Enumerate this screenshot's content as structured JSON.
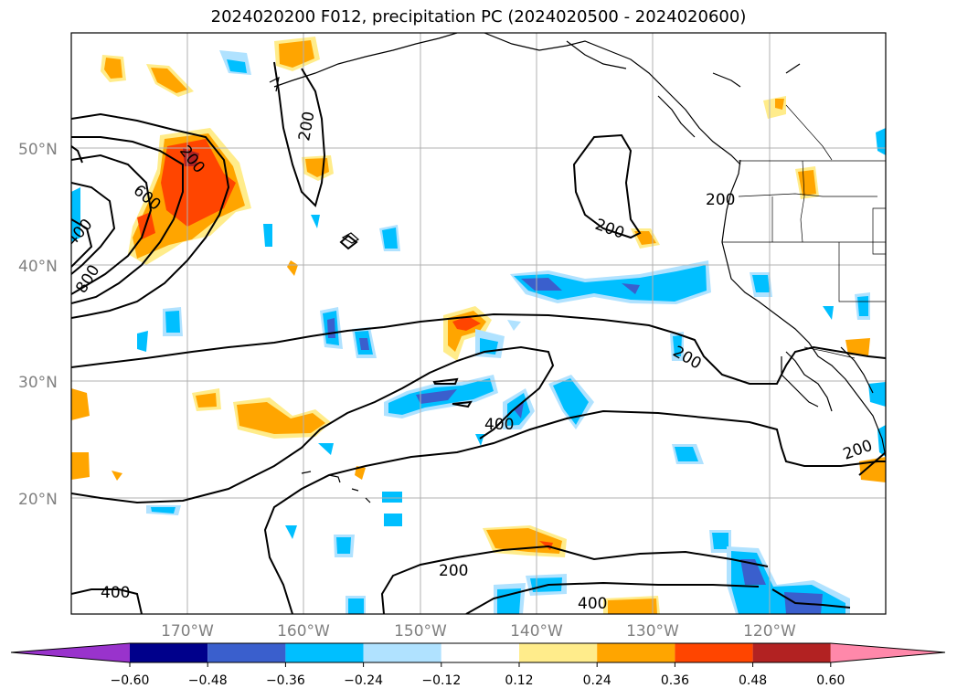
{
  "title": "2024020200 F012, precipitation PC (2024020500 - 2024020600)",
  "latitude_labels": [
    "50°N",
    "40°N",
    "30°N",
    "20°N"
  ],
  "longitude_labels": [
    "170°W",
    "160°W",
    "150°W",
    "140°W",
    "130°W",
    "120°W"
  ],
  "contour_labels": {
    "c1": "200",
    "c2": "200",
    "c3": "600",
    "c4": "400",
    "c5": "800",
    "c6": "200",
    "c7": "200",
    "c8": "200",
    "c9": "400",
    "c10": "200",
    "c11": "200",
    "c12": "400",
    "c13": "400"
  },
  "colorbar": {
    "ticks": [
      "−0.60",
      "−0.48",
      "−0.36",
      "−0.24",
      "−0.12",
      "0.12",
      "0.24",
      "0.36",
      "0.48",
      "0.60"
    ],
    "colors": [
      "#9933cc",
      "#00008b",
      "#3a5fcd",
      "#00bfff",
      "#b0e2ff",
      "#ffffff",
      "#ffec8b",
      "#ffa500",
      "#ff4500",
      "#b22222",
      "#ff88aa"
    ]
  },
  "palette": {
    "neg_strong": "#3a5fcd",
    "neg_mid": "#00bfff",
    "neg_weak": "#b0e2ff",
    "pos_weak": "#ffec8b",
    "pos_mid": "#ffa500",
    "pos_strong": "#ff4500"
  }
}
